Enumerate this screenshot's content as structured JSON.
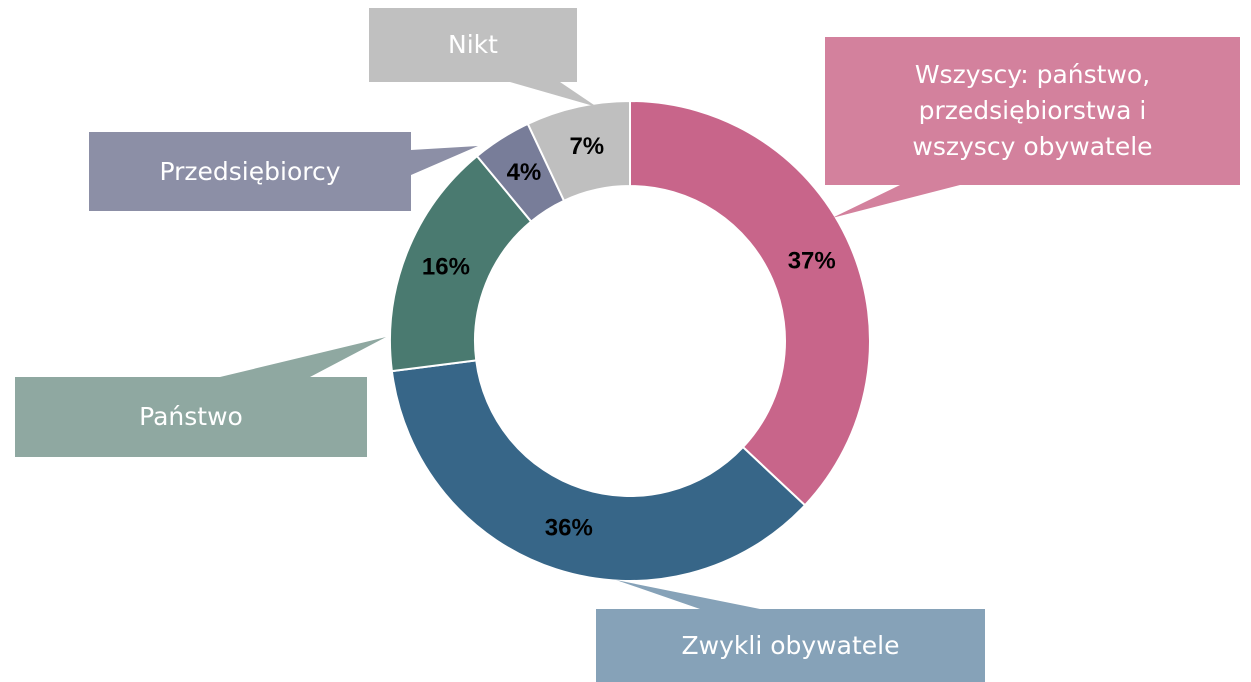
{
  "chart_data": {
    "type": "donut",
    "categories": [
      "Wszyscy: państwo, przedsiębiorstwa i wszyscy obywatele",
      "Zwykli obywatele",
      "Państwo",
      "Przedsiębiorcy",
      "Nikt"
    ],
    "values": [
      37,
      36,
      16,
      4,
      7
    ],
    "value_labels": [
      "37%",
      "36%",
      "16%",
      "4%",
      "7%"
    ],
    "colors": [
      "#c8658a",
      "#376688",
      "#4a7a70",
      "#787d99",
      "#bfbfbf"
    ],
    "label_colors": [
      "#d3819d",
      "#86a2b8",
      "#8fa8a1",
      "#8c8fa6",
      "#c0c0c0"
    ]
  }
}
